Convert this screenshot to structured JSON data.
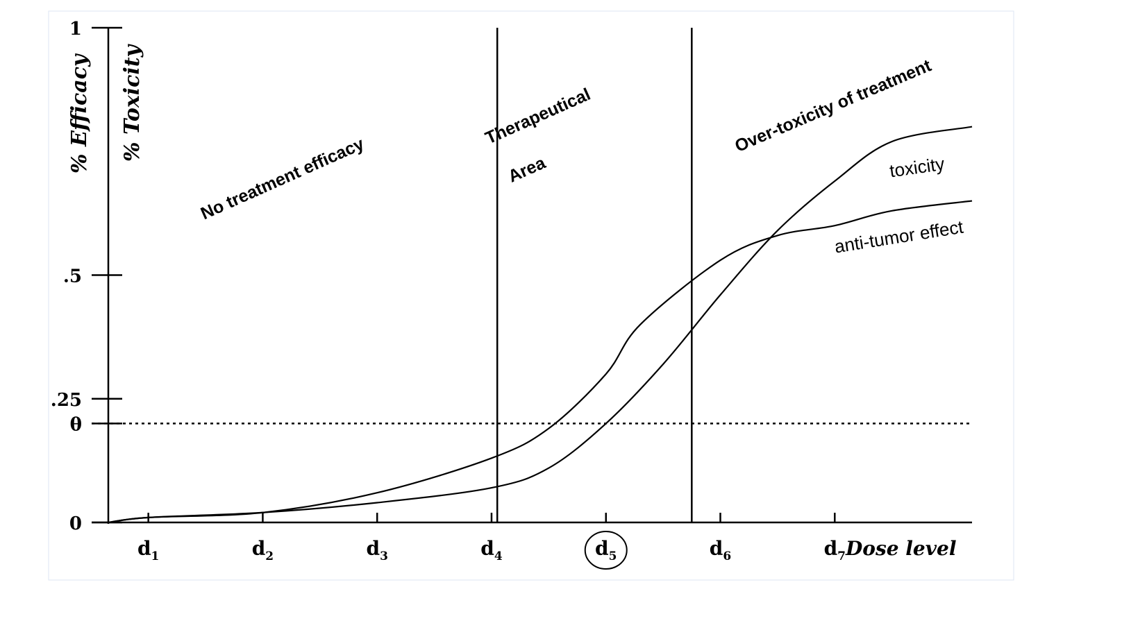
{
  "chart_data": {
    "type": "line",
    "ylabels": {
      "efficacy": "% Efficacy",
      "toxicity": "% Toxicity"
    },
    "xlabel": "Dose level",
    "y_ticks": [
      {
        "value": 1,
        "label": "1"
      },
      {
        "value": 0.5,
        "label": ".5"
      },
      {
        "value": 0.25,
        "label": ".25"
      },
      {
        "value": 0.2,
        "label": "θ"
      },
      {
        "value": 0,
        "label": "0"
      }
    ],
    "x_ticks": [
      {
        "base": "d",
        "sub": "1",
        "x": 1
      },
      {
        "base": "d",
        "sub": "2",
        "x": 2
      },
      {
        "base": "d",
        "sub": "3",
        "x": 3
      },
      {
        "base": "d",
        "sub": "4",
        "x": 4
      },
      {
        "base": "d",
        "sub": "5",
        "x": 5,
        "circled": true
      },
      {
        "base": "d",
        "sub": "6",
        "x": 6
      },
      {
        "base": "d",
        "sub": "7",
        "x": 7
      }
    ],
    "xlim": [
      0.65,
      8.2
    ],
    "ylim": [
      0,
      1
    ],
    "threshold": {
      "label": "θ",
      "value": 0.2,
      "style": "dotted"
    },
    "boundaries": [
      4.05,
      5.75
    ],
    "regions": [
      {
        "label": "No treatment efficacy"
      },
      {
        "label_lines": [
          "Therapeutical",
          "Area"
        ]
      },
      {
        "label": "Over-toxicity of treatment"
      }
    ],
    "series": [
      {
        "name": "toxicity",
        "points": [
          [
            0.65,
            0
          ],
          [
            1,
            0.01
          ],
          [
            2,
            0.02
          ],
          [
            3,
            0.06
          ],
          [
            4,
            0.13
          ],
          [
            4.5,
            0.19
          ],
          [
            5,
            0.3
          ],
          [
            5.3,
            0.4
          ],
          [
            6,
            0.53
          ],
          [
            6.5,
            0.58
          ],
          [
            7,
            0.6
          ],
          [
            7.5,
            0.63
          ],
          [
            8.2,
            0.65
          ]
        ]
      },
      {
        "name": "anti-tumor effect",
        "points": [
          [
            0.65,
            0
          ],
          [
            1,
            0.01
          ],
          [
            2,
            0.02
          ],
          [
            3,
            0.04
          ],
          [
            4,
            0.07
          ],
          [
            4.5,
            0.11
          ],
          [
            5,
            0.2
          ],
          [
            5.5,
            0.32
          ],
          [
            6,
            0.46
          ],
          [
            6.5,
            0.59
          ],
          [
            7,
            0.69
          ],
          [
            7.5,
            0.77
          ],
          [
            8.2,
            0.8
          ]
        ]
      }
    ],
    "grid": false,
    "legend": "none"
  }
}
